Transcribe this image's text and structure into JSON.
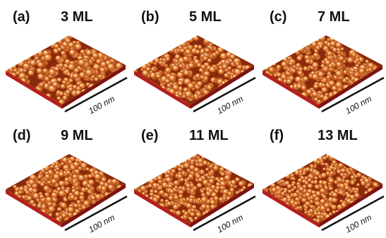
{
  "panels": [
    {
      "label": "(a)",
      "title": "3 ML",
      "scale": "100 nm"
    },
    {
      "label": "(b)",
      "title": "5 ML",
      "scale": "100 nm"
    },
    {
      "label": "(c)",
      "title": "7 ML",
      "scale": "100 nm"
    },
    {
      "label": "(d)",
      "title": "9 ML",
      "scale": "100 nm"
    },
    {
      "label": "(e)",
      "title": "11 ML",
      "scale": "100 nm"
    },
    {
      "label": "(f)",
      "title": "13 ML",
      "scale": "100 nm"
    }
  ]
}
